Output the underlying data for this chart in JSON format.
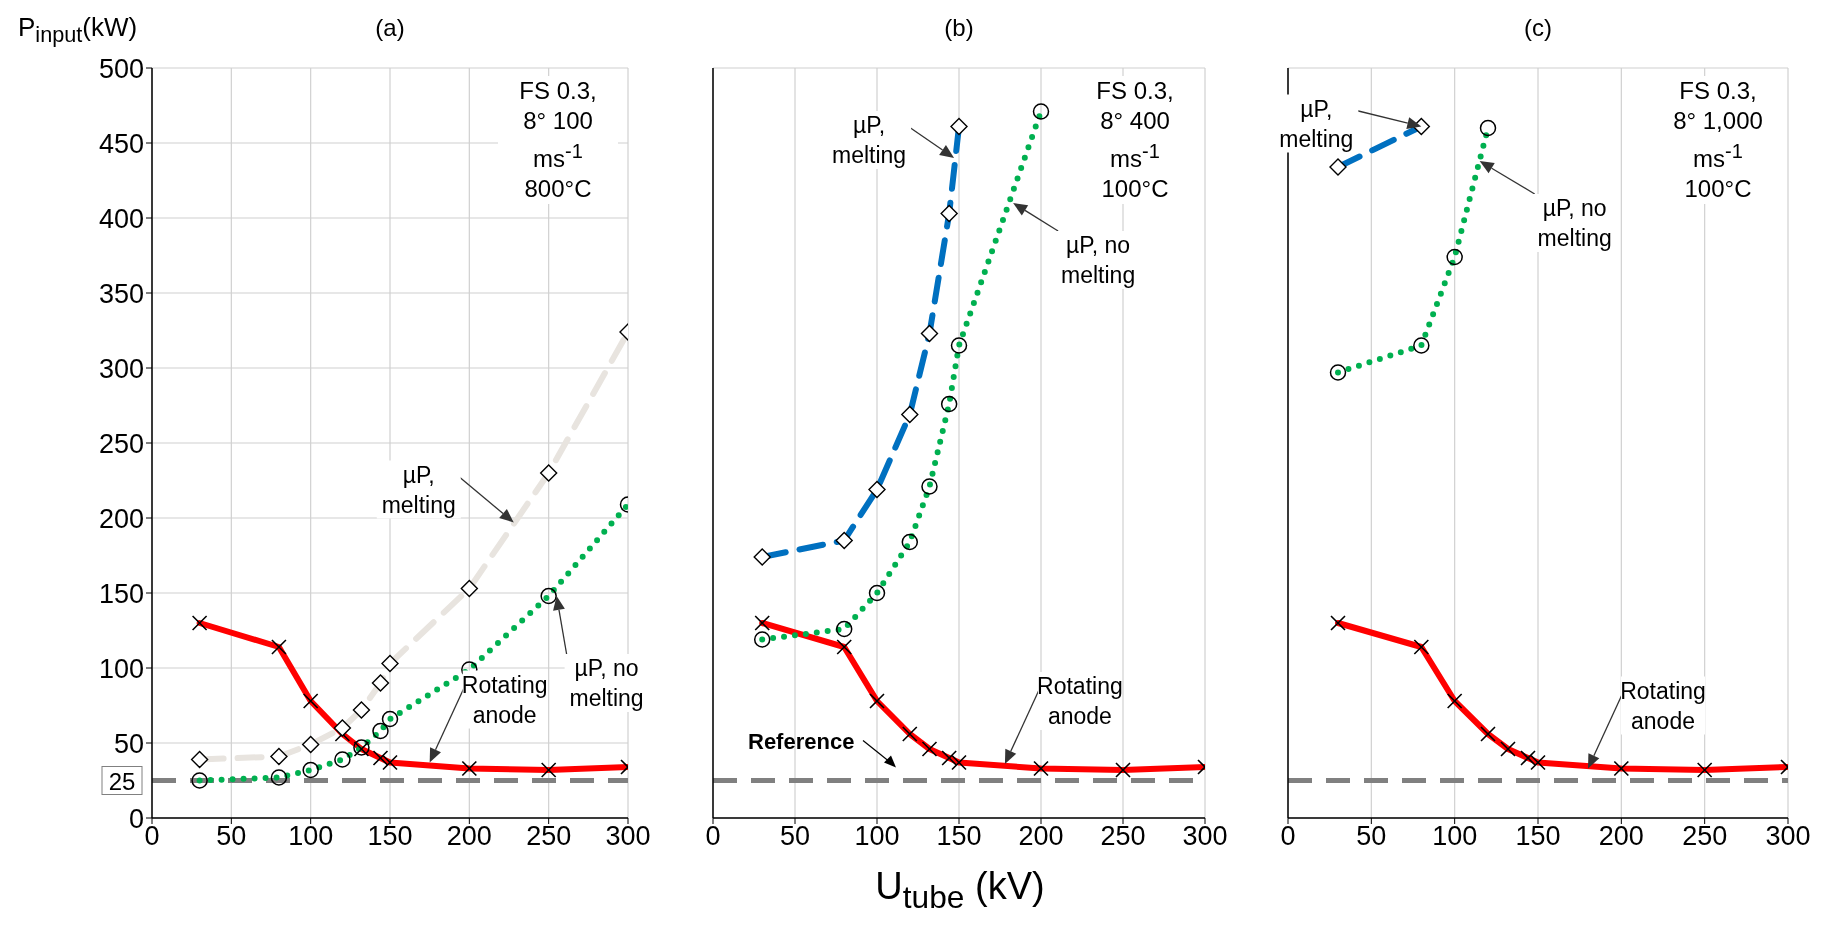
{
  "chart_data": [
    {
      "type": "line",
      "title": "(a)",
      "ylabel": "P$_{input}$(kW)",
      "x": [
        30,
        80,
        100,
        120,
        132,
        144,
        150,
        200,
        250,
        300
      ],
      "series": [
        {
          "color": "#ff0000",
          "marker": "cross",
          "line_style": "solid",
          "values": [
            130,
            114,
            78,
            56,
            46,
            40,
            37,
            33,
            32,
            34
          ]
        },
        {
          "color": "#e8e4df",
          "marker": "diamond",
          "line_style": "dashed",
          "values": [
            39,
            41,
            49,
            60,
            72,
            90,
            103,
            153,
            230,
            324
          ]
        },
        {
          "color": "#00b050",
          "marker": "circle",
          "line_style": "dotted",
          "values": [
            25,
            27,
            32,
            39,
            47,
            58,
            66,
            99,
            148,
            209
          ]
        }
      ],
      "xlim": [
        0,
        300
      ],
      "xticks": [
        0,
        50,
        100,
        150,
        200,
        250,
        300
      ],
      "ylim": [
        0,
        500
      ],
      "yticks": [
        0,
        50,
        100,
        150,
        200,
        250,
        300,
        350,
        400,
        450,
        500
      ],
      "grid": true,
      "ref_lines": [
        {
          "axis": "y",
          "value": 25,
          "label": "25",
          "color": "#808080",
          "line_style": "dashed"
        }
      ],
      "annotations": [
        "FS 0.3, 8° 100 ms$^{-1}$ 800°C",
        {
          "text": "µP, melting",
          "x": 228,
          "y": 197
        },
        {
          "text": "µP, no melting",
          "x": 255,
          "y": 148
        },
        {
          "text": "Rotating anode",
          "x": 175,
          "y": 37
        }
      ]
    },
    {
      "type": "line",
      "title": "(b)",
      "xlabel": "U$_{tube}$ (kV)",
      "x": [
        30,
        80,
        100,
        120,
        132,
        144,
        150,
        200,
        250,
        300
      ],
      "series": [
        {
          "color": "#ff0000",
          "marker": "cross",
          "line_style": "solid",
          "values": [
            130,
            114,
            78,
            56,
            46,
            40,
            37,
            33,
            32,
            34
          ]
        },
        {
          "color": "#0070c0",
          "marker": "diamond",
          "line_style": "dashed",
          "values": [
            174,
            185,
            219,
            269,
            323,
            403,
            461,
            null,
            null,
            null
          ]
        },
        {
          "color": "#00b050",
          "marker": "circle",
          "line_style": "dotted",
          "values": [
            119,
            126,
            150,
            184,
            221,
            276,
            315,
            471,
            null,
            null
          ]
        }
      ],
      "xlim": [
        0,
        300
      ],
      "xticks": [
        0,
        50,
        100,
        150,
        200,
        250,
        300
      ],
      "ylim": [
        0,
        500
      ],
      "yticks": [
        0,
        50,
        100,
        150,
        200,
        250,
        300,
        350,
        400,
        450,
        500
      ],
      "grid": true,
      "tick_labels": "x",
      "ref_lines": [
        {
          "axis": "y",
          "value": 25,
          "label": "Reference",
          "color": "#808080",
          "line_style": "dashed"
        }
      ],
      "annotations": [
        "FS 0.3, 8° 400 ms$^{-1}$ 100°C",
        {
          "text": "µP, melting",
          "x": 147,
          "y": 440
        },
        {
          "text": "µP, no melting",
          "x": 183,
          "y": 410
        },
        {
          "text": "Rotating anode",
          "x": 178,
          "y": 36
        }
      ]
    },
    {
      "type": "line",
      "title": "(c)",
      "x": [
        30,
        80,
        100,
        120,
        132,
        144,
        150,
        200,
        250,
        300
      ],
      "series": [
        {
          "color": "#ff0000",
          "marker": "cross",
          "line_style": "solid",
          "values": [
            130,
            114,
            78,
            56,
            46,
            40,
            37,
            33,
            32,
            34
          ]
        },
        {
          "color": "#0070c0",
          "marker": "diamond",
          "line_style": "dashed",
          "values": [
            434,
            461,
            null,
            null,
            null,
            null,
            null,
            null,
            null,
            null
          ]
        },
        {
          "color": "#00b050",
          "marker": "circle",
          "line_style": "dotted",
          "values": [
            297,
            315,
            374,
            460,
            null,
            null,
            null,
            null,
            null,
            null
          ]
        }
      ],
      "xlim": [
        0,
        300
      ],
      "xticks": [
        0,
        50,
        100,
        150,
        200,
        250,
        300
      ],
      "ylim": [
        0,
        500
      ],
      "yticks": [
        0,
        50,
        100,
        150,
        200,
        250,
        300,
        350,
        400,
        450,
        500
      ],
      "grid": true,
      "tick_labels": "x",
      "ref_lines": [
        {
          "axis": "y",
          "value": 25,
          "color": "#808080",
          "line_style": "dashed"
        }
      ],
      "annotations": [
        "FS 0.3, 8° 1,000 ms$^{-1}$ 100°C",
        {
          "text": "µP, melting",
          "x": 80,
          "y": 461
        },
        {
          "text": "µP, no melting",
          "x": 115,
          "y": 438
        },
        {
          "text": "Rotating anode",
          "x": 180,
          "y": 33
        }
      ]
    }
  ]
}
